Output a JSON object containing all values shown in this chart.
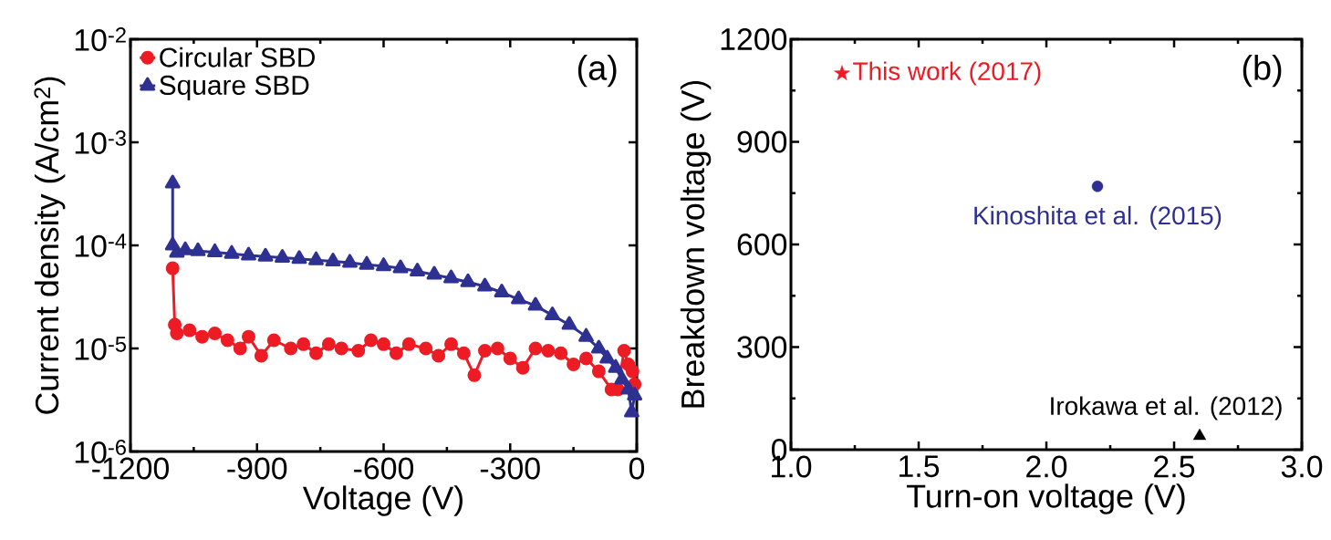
{
  "chart_data": [
    {
      "type": "line",
      "xlabel": "Voltage (V)",
      "ylabel": "Current density (A/cm$^{2}$)",
      "log": "y",
      "xlim": [
        -1200,
        0
      ],
      "xticks": [
        -1200,
        -900,
        -600,
        -300,
        0
      ],
      "ylim": [
        1e-06,
        0.01
      ],
      "yticks": [
        {
          "value": 1e-06,
          "label": "10$^{-6}$"
        },
        {
          "value": 1e-05,
          "label": "10$^{-5}$"
        },
        {
          "value": 0.0001,
          "label": "10$^{-4}$"
        },
        {
          "value": 0.001,
          "label": "10$^{-3}$"
        },
        {
          "value": 0.01,
          "label": "10$^{-2}$"
        }
      ],
      "grid": false,
      "legend": "top left",
      "annotations": [
        "(a)"
      ],
      "series": [
        {
          "name": "Circular SBD",
          "color": "#ed1c24",
          "marker": "circle",
          "x": [
            -1100,
            -1095,
            -1090,
            -1060,
            -1030,
            -1000,
            -970,
            -940,
            -920,
            -890,
            -860,
            -820,
            -790,
            -760,
            -730,
            -700,
            -660,
            -630,
            -600,
            -570,
            -540,
            -500,
            -470,
            -440,
            -410,
            -385,
            -360,
            -330,
            -300,
            -270,
            -240,
            -210,
            -180,
            -150,
            -120,
            -90,
            -70,
            -60,
            -45,
            -30,
            -20,
            -10,
            -5
          ],
          "values": [
            6e-05,
            1.7e-05,
            1.4e-05,
            1.5e-05,
            1.3e-05,
            1.4e-05,
            1.2e-05,
            1e-05,
            1.3e-05,
            8.5e-06,
            1.2e-05,
            1e-05,
            1.1e-05,
            9e-06,
            1.1e-05,
            1e-05,
            9.5e-06,
            1.2e-05,
            1.1e-05,
            9e-06,
            1.1e-05,
            1e-05,
            8.5e-06,
            1.1e-05,
            9e-06,
            5.5e-06,
            9.5e-06,
            1e-05,
            8e-06,
            6.5e-06,
            1e-05,
            9.5e-06,
            9e-06,
            7e-06,
            8e-06,
            6e-06,
            null,
            4e-06,
            4e-06,
            9.5e-06,
            7e-06,
            6e-06,
            4.5e-06
          ]
        },
        {
          "name": "Square SBD",
          "color": "#2e3192",
          "marker": "triangle",
          "x": [
            -1100,
            -1100,
            -1090,
            -1070,
            -1040,
            -1000,
            -960,
            -920,
            -880,
            -840,
            -800,
            -760,
            -720,
            -680,
            -640,
            -600,
            -560,
            -520,
            -480,
            -440,
            -400,
            -360,
            -320,
            -280,
            -240,
            -200,
            -160,
            -120,
            -90,
            -70,
            -50,
            -35,
            -20,
            -12,
            -5
          ],
          "values": [
            0.0004,
            0.0001,
            8.5e-05,
            9e-05,
            8.8e-05,
            8.6e-05,
            8.3e-05,
            8e-05,
            7.8e-05,
            7.6e-05,
            7.4e-05,
            7.2e-05,
            7e-05,
            6.8e-05,
            6.5e-05,
            6.3e-05,
            6e-05,
            5.6e-05,
            5.2e-05,
            4.8e-05,
            4.4e-05,
            4e-05,
            3.5e-05,
            3e-05,
            2.6e-05,
            2.1e-05,
            1.7e-05,
            1.3e-05,
            1e-05,
            8e-06,
            6.5e-06,
            5e-06,
            4e-06,
            2.4e-06,
            3.5e-06
          ]
        }
      ]
    },
    {
      "type": "scatter",
      "xlabel": "Turn-on voltage (V)",
      "ylabel": "Breakdown voltage (V)",
      "xlim": [
        1.0,
        3.0
      ],
      "xticks": [
        {
          "value": 1.0,
          "label": "1.0"
        },
        {
          "value": 1.5,
          "label": "1.5"
        },
        {
          "value": 2.0,
          "label": "2.0"
        },
        {
          "value": 2.5,
          "label": "2.5"
        },
        {
          "value": 3.0,
          "label": "3.0"
        }
      ],
      "ylim": [
        0,
        1200
      ],
      "yticks": [
        0,
        300,
        600,
        900,
        1200
      ],
      "grid": false,
      "annotations": [
        "(b)",
        {
          "text": "This work (2017)",
          "x": 1.2,
          "y": 1100
        },
        {
          "text": "Kinoshita et al. (2015)",
          "x": 2.2,
          "y": 770
        },
        {
          "text": "Irokawa et al. (2012)",
          "x": 2.6,
          "y": 40
        }
      ],
      "series": [
        {
          "color": "#ed1c24",
          "marker": "star",
          "x": [
            1.2
          ],
          "values": [
            1100
          ]
        },
        {
          "color": "#2e3192",
          "marker": "circle",
          "x": [
            2.2
          ],
          "values": [
            770
          ]
        },
        {
          "color": "#000000",
          "marker": "triangle",
          "x": [
            2.6
          ],
          "values": [
            40
          ]
        }
      ]
    }
  ]
}
